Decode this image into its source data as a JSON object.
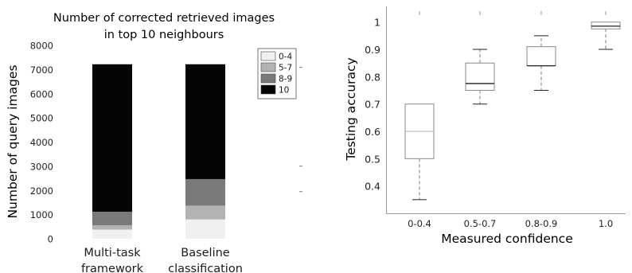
{
  "chart_data": [
    {
      "type": "bar",
      "stacked": true,
      "title": "Number of corrected retrieved images in top 10 neighbours",
      "title_lines": [
        "Number of corrected retrieved images",
        "in top 10 neighbours"
      ],
      "xlabel": "",
      "ylabel": "Number of query images",
      "ylim": [
        0,
        8000
      ],
      "yticks": [
        "0",
        "1000",
        "2000",
        "3000",
        "4000",
        "5000",
        "6000",
        "7000",
        "8000"
      ],
      "categories": [
        "Multi-task framework",
        "Baseline classification"
      ],
      "category_lines": [
        [
          "Multi-task",
          "framework"
        ],
        [
          "Baseline",
          "classification"
        ]
      ],
      "series": [
        {
          "name": "0-4",
          "values": [
            380,
            800
          ],
          "color": "#f0f0f0"
        },
        {
          "name": "5-7",
          "values": [
            180,
            570
          ],
          "color": "#b3b3b3"
        },
        {
          "name": "8-9",
          "values": [
            560,
            1100
          ],
          "color": "#7a7a7a"
        },
        {
          "name": "10",
          "values": [
            6080,
            4730
          ],
          "color": "#050505"
        }
      ],
      "legend_position": "top-right",
      "grid": false
    },
    {
      "type": "box",
      "title": "",
      "xlabel": "Measured confidence",
      "ylabel": "Testing accuracy",
      "ylim": [
        0.3,
        1.04
      ],
      "yticks": [
        "0.4",
        "0.5",
        "0.6",
        "0.7",
        "0.8",
        "0.9",
        "1"
      ],
      "categories": [
        "0-0.4",
        "0.5-0.7",
        "0.8-0.9",
        "1.0"
      ],
      "boxes": [
        {
          "q1": 0.5,
          "median": 0.6,
          "q3": 0.7,
          "whisker_low": 0.35,
          "whisker_high": 0.7
        },
        {
          "q1": 0.75,
          "median": 0.775,
          "q3": 0.85,
          "whisker_low": 0.7,
          "whisker_high": 0.9
        },
        {
          "q1": 0.84,
          "median": 0.84,
          "q3": 0.91,
          "whisker_low": 0.75,
          "whisker_high": 0.95
        },
        {
          "q1": 0.975,
          "median": 0.985,
          "q3": 1.0,
          "whisker_low": 0.9,
          "whisker_high": 1.0
        }
      ],
      "grid": false
    }
  ]
}
